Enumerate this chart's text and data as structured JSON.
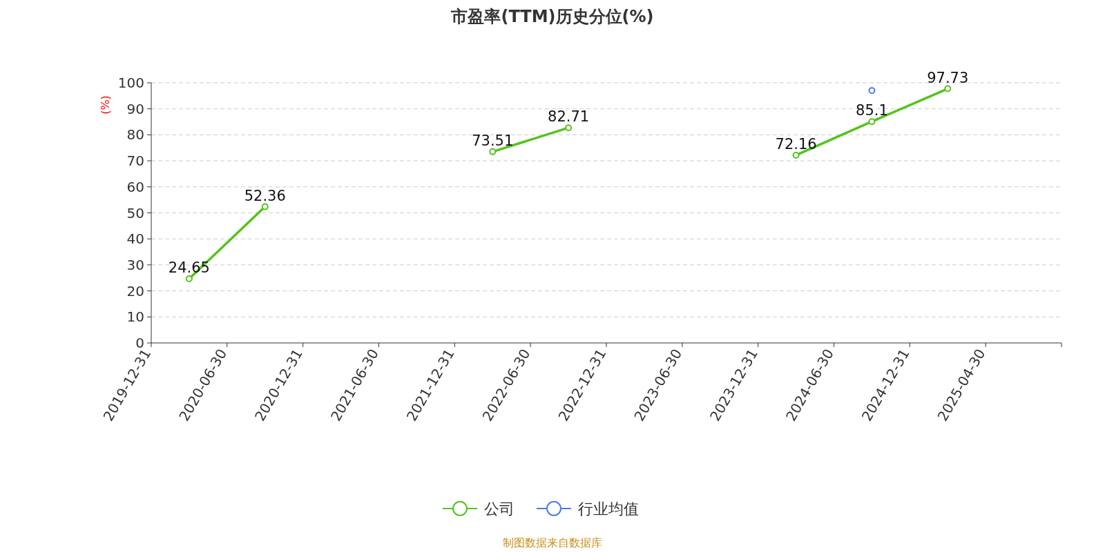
{
  "chart_data": {
    "type": "line",
    "title": "市盈率(TTM)历史分位(%)",
    "ylabel": "(%)",
    "categories": [
      "2019-12-31",
      null,
      "2020-06-30",
      null,
      "2020-12-31",
      null,
      "2021-06-30",
      null,
      "2021-12-31",
      null,
      "2022-06-30",
      null,
      "2022-12-31",
      null,
      "2023-06-30",
      null,
      "2023-12-31",
      null,
      "2024-06-30",
      null,
      "2024-12-31",
      null,
      "2025-04-30",
      null
    ],
    "series": [
      {
        "name": "公司",
        "color": "#52c41a",
        "values": [
          null,
          24.65,
          null,
          52.36,
          null,
          null,
          null,
          null,
          null,
          73.51,
          null,
          82.71,
          null,
          null,
          null,
          null,
          null,
          72.16,
          null,
          85.1,
          null,
          97.73,
          null,
          null
        ],
        "value_labels": [
          null,
          "24.65",
          null,
          "52.36",
          null,
          null,
          null,
          null,
          null,
          "73.51",
          null,
          "82.71",
          null,
          null,
          null,
          null,
          null,
          "72.16",
          null,
          "85.1",
          null,
          "97.73",
          null,
          null
        ]
      },
      {
        "name": "行业均值",
        "color": "#4b7bec",
        "values": [
          null,
          null,
          null,
          null,
          null,
          null,
          null,
          null,
          null,
          null,
          null,
          null,
          null,
          null,
          null,
          null,
          null,
          null,
          null,
          97,
          null,
          null,
          null,
          null
        ]
      }
    ],
    "ylim": [
      0,
      100
    ],
    "yticks": [
      0,
      10,
      20,
      30,
      40,
      50,
      60,
      70,
      80,
      90,
      100
    ],
    "grid": "y",
    "legend": "bottom",
    "marker": "circle",
    "line_style": "solid",
    "annotations": [
      "制图数据来自数据库"
    ]
  }
}
